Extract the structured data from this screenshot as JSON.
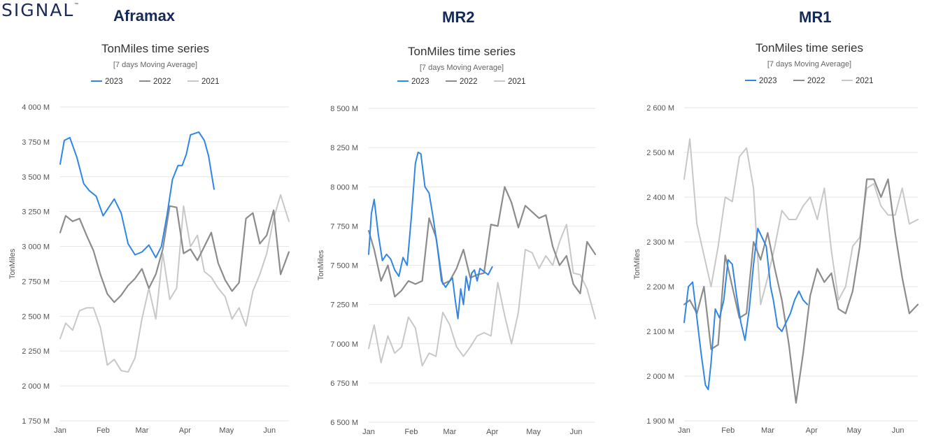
{
  "brand": {
    "logo_text": "SIGNAL",
    "trademark": "™"
  },
  "colors": {
    "2023": "#2f86e6",
    "2022": "#8c8c8c",
    "2021": "#c8c8c8",
    "title": "#142a57"
  },
  "chart_data": [
    {
      "type": "line",
      "panel_title": "Aframax",
      "title": "TonMiles time series",
      "subtitle": "[7 days Moving Average]",
      "xlabel": "",
      "ylabel": "TonMiles",
      "x_ticks": [
        "Jan",
        "Feb",
        "Mar",
        "Apr",
        "May",
        "Jun"
      ],
      "y_ticks": [
        "1 750 M",
        "2 000 M",
        "2 250 M",
        "2 500 M",
        "2 750 M",
        "3 000 M",
        "3 250 M",
        "3 500 M",
        "3 750 M",
        "4 000 M"
      ],
      "ylim": [
        1750,
        4000
      ],
      "x_unit": "day of year",
      "xlim": [
        1,
        166
      ],
      "grid": true,
      "legend_position": "top-center",
      "series": [
        {
          "name": "2023",
          "x": [
            1,
            4,
            8,
            13,
            18,
            22,
            27,
            32,
            36,
            40,
            45,
            50,
            55,
            60,
            65,
            70,
            74,
            78,
            82,
            86,
            89,
            92,
            95,
            98,
            101,
            105,
            108,
            112
          ],
          "values": [
            3590,
            3760,
            3780,
            3640,
            3450,
            3400,
            3360,
            3220,
            3280,
            3340,
            3240,
            3020,
            2940,
            2960,
            3010,
            2920,
            3000,
            3220,
            3480,
            3580,
            3580,
            3660,
            3800,
            3810,
            3820,
            3760,
            3650,
            3410
          ]
        },
        {
          "name": "2022",
          "x": [
            1,
            5,
            10,
            15,
            20,
            25,
            30,
            35,
            40,
            45,
            50,
            55,
            60,
            65,
            70,
            75,
            80,
            85,
            90,
            95,
            100,
            105,
            110,
            115,
            120,
            125,
            130,
            135,
            140,
            145,
            150,
            155,
            160,
            166
          ],
          "values": [
            3100,
            3220,
            3180,
            3200,
            3080,
            2970,
            2800,
            2660,
            2600,
            2650,
            2720,
            2770,
            2840,
            2700,
            2800,
            2980,
            3290,
            3280,
            2950,
            2980,
            2900,
            3000,
            3100,
            2880,
            2760,
            2680,
            2740,
            3200,
            3240,
            3020,
            3080,
            3260,
            2800,
            2960
          ]
        },
        {
          "name": "2021",
          "x": [
            1,
            5,
            10,
            15,
            20,
            25,
            30,
            35,
            40,
            45,
            50,
            55,
            60,
            65,
            70,
            75,
            80,
            85,
            90,
            95,
            100,
            105,
            110,
            115,
            120,
            125,
            130,
            135,
            140,
            145,
            150,
            155,
            160,
            166
          ],
          "values": [
            2340,
            2450,
            2400,
            2540,
            2560,
            2560,
            2420,
            2150,
            2190,
            2110,
            2100,
            2200,
            2480,
            2700,
            2480,
            2950,
            2620,
            2700,
            3290,
            3000,
            3080,
            2820,
            2780,
            2700,
            2640,
            2480,
            2560,
            2430,
            2680,
            2800,
            2950,
            3200,
            3370,
            3180
          ]
        }
      ]
    },
    {
      "type": "line",
      "panel_title": "MR2",
      "title": "TonMiles time series",
      "subtitle": "[7 days Moving Average]",
      "xlabel": "",
      "ylabel": "TonMiles",
      "x_ticks": [
        "Jan",
        "Feb",
        "Mar",
        "Apr",
        "May",
        "Jun"
      ],
      "y_ticks": [
        "6 500 M",
        "6 750 M",
        "7 000 M",
        "7 250 M",
        "7 500 M",
        "7 750 M",
        "8 000 M",
        "8 250 M",
        "8 500 M"
      ],
      "ylim": [
        6500,
        8500
      ],
      "x_unit": "day of year",
      "xlim": [
        1,
        166
      ],
      "grid": true,
      "legend_position": "top-center",
      "series": [
        {
          "name": "2023",
          "x": [
            1,
            3,
            5,
            8,
            11,
            14,
            17,
            20,
            23,
            26,
            29,
            32,
            35,
            37,
            39,
            42,
            45,
            48,
            51,
            54,
            57,
            60,
            62,
            64,
            66,
            68,
            70,
            72,
            74,
            76,
            78,
            80,
            82,
            85,
            88,
            91
          ],
          "values": [
            7570,
            7830,
            7920,
            7700,
            7530,
            7570,
            7540,
            7470,
            7430,
            7550,
            7500,
            7800,
            8150,
            8220,
            8210,
            8000,
            7960,
            7800,
            7620,
            7400,
            7360,
            7400,
            7420,
            7280,
            7160,
            7350,
            7250,
            7430,
            7340,
            7450,
            7470,
            7400,
            7480,
            7460,
            7440,
            7490
          ]
        },
        {
          "name": "2022",
          "x": [
            1,
            5,
            10,
            15,
            20,
            25,
            30,
            35,
            40,
            45,
            50,
            55,
            60,
            65,
            70,
            75,
            80,
            85,
            90,
            95,
            100,
            105,
            110,
            115,
            120,
            125,
            130,
            135,
            140,
            145,
            150,
            155,
            160,
            166
          ],
          "values": [
            7720,
            7600,
            7400,
            7500,
            7300,
            7340,
            7400,
            7380,
            7400,
            7800,
            7680,
            7380,
            7400,
            7480,
            7600,
            7420,
            7440,
            7450,
            7760,
            7750,
            8000,
            7900,
            7740,
            7880,
            7840,
            7800,
            7820,
            7620,
            7500,
            7560,
            7380,
            7320,
            7650,
            7570
          ]
        },
        {
          "name": "2021",
          "x": [
            1,
            5,
            10,
            15,
            20,
            25,
            30,
            35,
            40,
            45,
            50,
            55,
            60,
            65,
            70,
            75,
            80,
            85,
            90,
            95,
            100,
            105,
            110,
            115,
            120,
            125,
            130,
            135,
            140,
            145,
            150,
            155,
            160,
            166
          ],
          "values": [
            6970,
            7120,
            6880,
            7050,
            6940,
            6980,
            7170,
            7100,
            6860,
            6940,
            6920,
            7200,
            7120,
            6980,
            6920,
            6980,
            7050,
            7070,
            7050,
            7390,
            7180,
            7000,
            7200,
            7600,
            7580,
            7480,
            7560,
            7500,
            7650,
            7760,
            7450,
            7440,
            7350,
            7160
          ]
        }
      ]
    },
    {
      "type": "line",
      "panel_title": "MR1",
      "title": "TonMiles time series",
      "subtitle": "[7 days Moving Average]",
      "xlabel": "",
      "ylabel": "TonMiles",
      "x_ticks": [
        "Jan",
        "Feb",
        "Mar",
        "Apr",
        "May",
        "Jun"
      ],
      "y_ticks": [
        "1 900 M",
        "2 000 M",
        "2 100 M",
        "2 200 M",
        "2 300 M",
        "2 400 M",
        "2 500 M",
        "2 600 M"
      ],
      "ylim": [
        1900,
        2600
      ],
      "x_unit": "day of year",
      "xlim": [
        1,
        166
      ],
      "grid": true,
      "legend_position": "top-center",
      "series": [
        {
          "name": "2023",
          "x": [
            1,
            4,
            7,
            10,
            13,
            16,
            18,
            20,
            23,
            26,
            29,
            32,
            35,
            38,
            41,
            44,
            47,
            50,
            53,
            56,
            59,
            62,
            64,
            67,
            70,
            73,
            76,
            79,
            82,
            85,
            88
          ],
          "values": [
            2120,
            2200,
            2210,
            2130,
            2050,
            1980,
            1970,
            2030,
            2150,
            2130,
            2170,
            2260,
            2250,
            2180,
            2120,
            2080,
            2150,
            2250,
            2330,
            2310,
            2290,
            2200,
            2170,
            2110,
            2100,
            2120,
            2140,
            2170,
            2190,
            2170,
            2160
          ]
        },
        {
          "name": "2022",
          "x": [
            1,
            5,
            10,
            15,
            20,
            25,
            30,
            35,
            40,
            45,
            50,
            55,
            60,
            65,
            70,
            75,
            80,
            85,
            90,
            95,
            100,
            105,
            110,
            115,
            120,
            125,
            130,
            135,
            140,
            145,
            150,
            155,
            160,
            166
          ],
          "values": [
            2160,
            2170,
            2140,
            2200,
            2060,
            2070,
            2270,
            2200,
            2130,
            2140,
            2300,
            2260,
            2320,
            2240,
            2170,
            2070,
            1940,
            2050,
            2180,
            2240,
            2210,
            2230,
            2150,
            2140,
            2190,
            2290,
            2440,
            2440,
            2400,
            2440,
            2320,
            2220,
            2140,
            2160
          ]
        },
        {
          "name": "2021",
          "x": [
            1,
            5,
            10,
            15,
            20,
            25,
            30,
            35,
            40,
            45,
            50,
            55,
            60,
            65,
            70,
            75,
            80,
            85,
            90,
            95,
            100,
            105,
            110,
            115,
            120,
            125,
            130,
            135,
            140,
            145,
            150,
            155,
            160,
            166
          ],
          "values": [
            2440,
            2530,
            2340,
            2270,
            2200,
            2290,
            2400,
            2390,
            2490,
            2510,
            2420,
            2160,
            2220,
            2290,
            2370,
            2350,
            2350,
            2380,
            2400,
            2350,
            2420,
            2280,
            2170,
            2200,
            2290,
            2310,
            2420,
            2430,
            2380,
            2360,
            2360,
            2420,
            2340,
            2350
          ]
        }
      ]
    }
  ]
}
